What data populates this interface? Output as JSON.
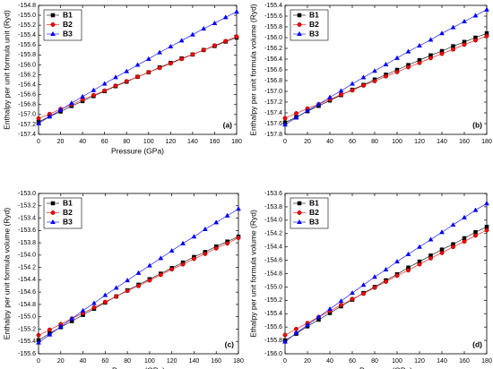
{
  "chart_data": [
    {
      "type": "line",
      "annotation": "(a)",
      "xlabel": "Pressure (GPa)",
      "ylabel": "Enthalpy per unit formula unit (Ryd)",
      "x": [
        0,
        10,
        20,
        30,
        40,
        50,
        60,
        70,
        80,
        90,
        100,
        110,
        120,
        130,
        140,
        150,
        160,
        170,
        180
      ],
      "xlim": [
        0,
        180
      ],
      "xticks": [
        0,
        20,
        40,
        60,
        80,
        100,
        120,
        140,
        160,
        180
      ],
      "ylim": [
        -157.4,
        -154.8
      ],
      "yticks": [
        -157.4,
        -157.2,
        {
          "value": -157,
          "label": "-157.0"
        },
        -156.8,
        -156.6,
        -156.4,
        -156.2,
        {
          "value": -156,
          "label": "-156.0"
        },
        -155.8,
        -155.6,
        -155.4,
        -155.2,
        {
          "value": -155,
          "label": "-155.0"
        },
        -154.8
      ],
      "legend": "upper left",
      "series": [
        {
          "name": "B1",
          "color": "#000000",
          "marker": "square",
          "values": [
            -157.15,
            -157.04,
            -156.94,
            -156.83,
            -156.73,
            -156.63,
            -156.53,
            -156.43,
            -156.34,
            -156.24,
            -156.15,
            -156.05,
            -155.96,
            -155.87,
            -155.79,
            -155.7,
            -155.62,
            -155.53,
            -155.45
          ]
        },
        {
          "name": "B2",
          "color": "#ff0000",
          "marker": "circle",
          "values": [
            -157.08,
            -156.99,
            -156.89,
            -156.8,
            -156.7,
            -156.61,
            -156.52,
            -156.42,
            -156.33,
            -156.24,
            -156.15,
            -156.06,
            -155.97,
            -155.88,
            -155.79,
            -155.7,
            -155.61,
            -155.52,
            -155.43
          ]
        },
        {
          "name": "B3",
          "color": "#0000ff",
          "marker": "triangle",
          "values": [
            -157.18,
            -157.04,
            -156.91,
            -156.77,
            -156.64,
            -156.51,
            -156.38,
            -156.25,
            -156.13,
            -156.0,
            -155.88,
            -155.75,
            -155.63,
            -155.51,
            -155.39,
            -155.27,
            -155.16,
            -155.04,
            -154.93
          ]
        }
      ]
    },
    {
      "type": "line",
      "annotation": "(b)",
      "ylabel": "Enthalpy per unit formula volume (Ryd)",
      "x": [
        0,
        10,
        20,
        30,
        40,
        50,
        60,
        70,
        80,
        90,
        100,
        110,
        120,
        130,
        140,
        150,
        160,
        170,
        180
      ],
      "xlim": [
        0,
        180
      ],
      "xticks": [
        0,
        20,
        40,
        60,
        80,
        100,
        120,
        140,
        160,
        180
      ],
      "ylim": [
        -157.8,
        -155.4
      ],
      "yticks": [
        -157.8,
        -157.6,
        -157.4,
        -157.2,
        {
          "value": -157,
          "label": "-157.0"
        },
        -156.8,
        -156.6,
        -156.4,
        -156.2,
        {
          "value": -156,
          "label": "-156.0"
        },
        -155.8,
        -155.6,
        -155.4
      ],
      "legend": "upper left",
      "series": [
        {
          "name": "B1",
          "color": "#000000",
          "marker": "square",
          "values": [
            -157.58,
            -157.48,
            -157.37,
            -157.27,
            -157.17,
            -157.07,
            -156.97,
            -156.88,
            -156.78,
            -156.69,
            -156.6,
            -156.51,
            -156.42,
            -156.33,
            -156.25,
            -156.16,
            -156.08,
            -156.0,
            -155.92
          ]
        },
        {
          "name": "B2",
          "color": "#ff0000",
          "marker": "circle",
          "values": [
            -157.5,
            -157.41,
            -157.32,
            -157.24,
            -157.15,
            -157.06,
            -156.98,
            -156.89,
            -156.81,
            -156.72,
            -156.64,
            -156.55,
            -156.47,
            -156.38,
            -156.3,
            -156.22,
            -156.13,
            -156.05,
            -155.97
          ]
        },
        {
          "name": "B3",
          "color": "#0000ff",
          "marker": "triangle",
          "values": [
            -157.62,
            -157.49,
            -157.36,
            -157.24,
            -157.11,
            -156.99,
            -156.86,
            -156.74,
            -156.62,
            -156.5,
            -156.38,
            -156.26,
            -156.15,
            -156.04,
            -155.92,
            -155.81,
            -155.7,
            -155.59,
            -155.48
          ]
        }
      ]
    },
    {
      "type": "line",
      "annotation": "(c)",
      "xlabel": "Pressure (GPa)",
      "ylabel": "Enthalpy per unit formula volume (Ryd)",
      "x": [
        0,
        10,
        20,
        30,
        40,
        50,
        60,
        70,
        80,
        90,
        100,
        110,
        120,
        130,
        140,
        150,
        160,
        170,
        180
      ],
      "xlim": [
        0,
        180
      ],
      "xticks": [
        0,
        20,
        40,
        60,
        80,
        100,
        120,
        140,
        160,
        180
      ],
      "ylim": [
        -155.6,
        -153.0
      ],
      "yticks": [
        -155.6,
        -155.4,
        -155.2,
        {
          "value": -155,
          "label": "-155.0"
        },
        -154.8,
        -154.6,
        -154.4,
        -154.2,
        {
          "value": -154,
          "label": "-154.0"
        },
        -153.8,
        -153.6,
        -153.4,
        -153.2,
        {
          "value": -153,
          "label": "-153.0"
        }
      ],
      "legend": "upper left",
      "series": [
        {
          "name": "B1",
          "color": "#000000",
          "marker": "square",
          "values": [
            -155.38,
            -155.27,
            -155.17,
            -155.07,
            -154.97,
            -154.87,
            -154.77,
            -154.67,
            -154.57,
            -154.48,
            -154.39,
            -154.3,
            -154.21,
            -154.12,
            -154.03,
            -153.95,
            -153.86,
            -153.78,
            -153.7
          ]
        },
        {
          "name": "B2",
          "color": "#ff0000",
          "marker": "circle",
          "values": [
            -155.3,
            -155.21,
            -155.12,
            -155.03,
            -154.94,
            -154.85,
            -154.76,
            -154.67,
            -154.58,
            -154.5,
            -154.41,
            -154.32,
            -154.23,
            -154.15,
            -154.06,
            -153.98,
            -153.89,
            -153.81,
            -153.72
          ]
        },
        {
          "name": "B3",
          "color": "#0000ff",
          "marker": "triangle",
          "values": [
            -155.42,
            -155.29,
            -155.16,
            -155.03,
            -154.9,
            -154.78,
            -154.65,
            -154.53,
            -154.41,
            -154.29,
            -154.17,
            -154.05,
            -153.93,
            -153.81,
            -153.7,
            -153.58,
            -153.47,
            -153.36,
            -153.25
          ]
        }
      ]
    },
    {
      "type": "line",
      "annotation": "(d)",
      "xlabel": "Pressure (GPa)",
      "ylabel": "Ethalpy per unit formula volume (Ryd)",
      "x": [
        0,
        10,
        20,
        30,
        40,
        50,
        60,
        70,
        80,
        90,
        100,
        110,
        120,
        130,
        140,
        150,
        160,
        170,
        180
      ],
      "xlim": [
        0,
        180
      ],
      "xticks": [
        0,
        20,
        40,
        60,
        80,
        100,
        120,
        140,
        160,
        180
      ],
      "ylim": [
        -156.0,
        -153.6
      ],
      "yticks": [
        {
          "value": -156,
          "label": "-156.0"
        },
        -155.8,
        -155.6,
        -155.4,
        -155.2,
        {
          "value": -155,
          "label": "-155.0"
        },
        -154.8,
        -154.6,
        -154.4,
        -154.2,
        {
          "value": -154,
          "label": "-154.0"
        },
        -153.8,
        -153.6
      ],
      "legend": "upper left",
      "series": [
        {
          "name": "B1",
          "color": "#000000",
          "marker": "square",
          "values": [
            -155.8,
            -155.7,
            -155.59,
            -155.49,
            -155.39,
            -155.29,
            -155.19,
            -155.09,
            -155.0,
            -154.9,
            -154.81,
            -154.71,
            -154.62,
            -154.53,
            -154.44,
            -154.36,
            -154.27,
            -154.18,
            -154.1
          ]
        },
        {
          "name": "B2",
          "color": "#ff0000",
          "marker": "circle",
          "values": [
            -155.72,
            -155.63,
            -155.54,
            -155.45,
            -155.36,
            -155.27,
            -155.18,
            -155.1,
            -155.01,
            -154.92,
            -154.83,
            -154.75,
            -154.66,
            -154.57,
            -154.49,
            -154.4,
            -154.32,
            -154.23,
            -154.15
          ]
        },
        {
          "name": "B3",
          "color": "#0000ff",
          "marker": "triangle",
          "values": [
            -155.82,
            -155.69,
            -155.57,
            -155.45,
            -155.33,
            -155.21,
            -155.09,
            -154.97,
            -154.85,
            -154.74,
            -154.62,
            -154.51,
            -154.4,
            -154.29,
            -154.18,
            -154.07,
            -153.96,
            -153.85,
            -153.75
          ]
        }
      ]
    }
  ]
}
